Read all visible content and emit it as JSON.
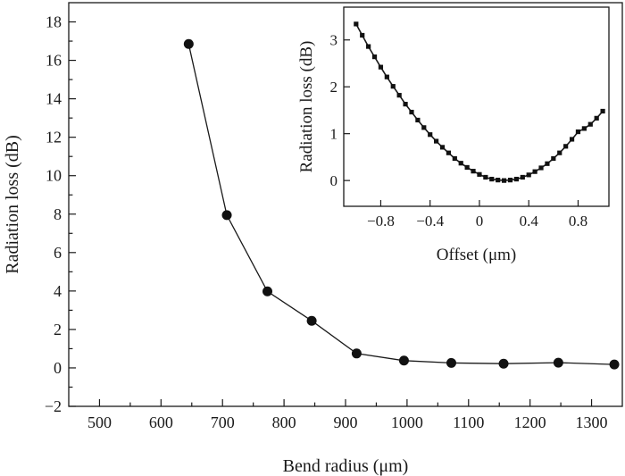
{
  "chart_data": [
    {
      "type": "line",
      "title": "",
      "xlabel": "Bend radius (μm)",
      "ylabel": "Radiation loss (dB)",
      "xlim": [
        450,
        1350
      ],
      "ylim": [
        -2,
        19
      ],
      "xticks": [
        500,
        600,
        700,
        800,
        900,
        1000,
        1100,
        1200,
        1300
      ],
      "yticks": [
        -2,
        0,
        2,
        4,
        6,
        8,
        10,
        12,
        14,
        16,
        18
      ],
      "grid": false,
      "marker": "circle",
      "x": [
        645,
        707,
        773,
        845,
        918,
        995,
        1072,
        1157,
        1246,
        1337
      ],
      "y": [
        16.85,
        7.95,
        3.98,
        2.45,
        0.75,
        0.38,
        0.26,
        0.22,
        0.27,
        0.18
      ]
    },
    {
      "type": "line",
      "title": "",
      "xlabel": "Offset (μm)",
      "ylabel": "Radiation loss (dB)",
      "xlim": [
        -1.1,
        1.05
      ],
      "ylim": [
        -0.55,
        3.7
      ],
      "xticks": [
        -0.8,
        -0.4,
        0,
        0.4,
        0.8
      ],
      "xtick_labels": [
        "−0.8",
        "−0.4",
        "0",
        "0.4",
        "0.8"
      ],
      "yticks": [
        0,
        1,
        2,
        3
      ],
      "grid": false,
      "marker": "square",
      "x": [
        -1.0,
        -0.95,
        -0.9,
        -0.85,
        -0.8,
        -0.75,
        -0.7,
        -0.65,
        -0.6,
        -0.55,
        -0.5,
        -0.45,
        -0.4,
        -0.35,
        -0.3,
        -0.25,
        -0.2,
        -0.15,
        -0.1,
        -0.05,
        0.0,
        0.05,
        0.1,
        0.15,
        0.2,
        0.25,
        0.3,
        0.35,
        0.4,
        0.45,
        0.5,
        0.55,
        0.6,
        0.65,
        0.7,
        0.75,
        0.8,
        0.85,
        0.9,
        0.95,
        1.0
      ],
      "y": [
        3.34,
        3.1,
        2.86,
        2.64,
        2.42,
        2.21,
        2.01,
        1.82,
        1.63,
        1.46,
        1.29,
        1.13,
        0.98,
        0.84,
        0.71,
        0.59,
        0.47,
        0.37,
        0.28,
        0.2,
        0.13,
        0.07,
        0.03,
        0.01,
        0.0,
        0.01,
        0.03,
        0.07,
        0.12,
        0.19,
        0.27,
        0.36,
        0.47,
        0.59,
        0.73,
        0.88,
        1.04,
        1.11,
        1.2,
        1.33,
        1.48
      ]
    }
  ]
}
